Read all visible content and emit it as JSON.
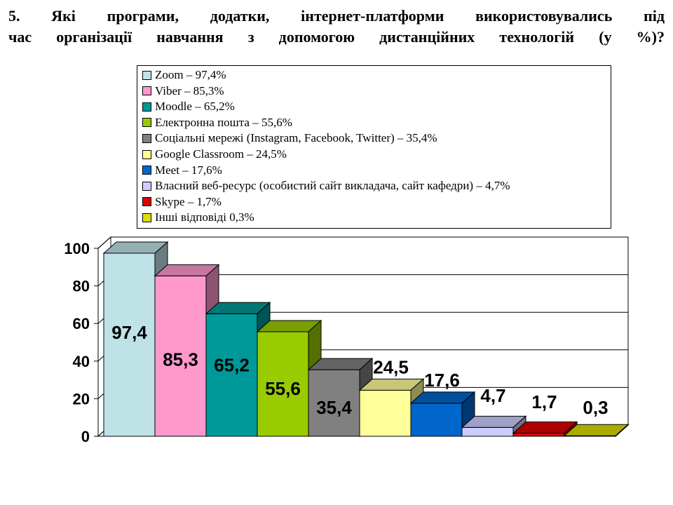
{
  "title_lines": [
    "5. Які програми, додатки, інтернет-платформи використовувались під",
    "час організації навчання з допомогою дистанційних технологій (у %)?"
  ],
  "chart_data": {
    "type": "bar",
    "categories": [
      "Zoom",
      "Viber",
      "Moodle",
      "Електронна пошта",
      "Соціальні мережі (Instagram, Facebook, Twitter)",
      "Google Classroom",
      "Meet",
      "Власний веб-ресурс (особистий сайт викладача, сайт кафедри)",
      "Skype",
      "Інші відповіді"
    ],
    "values": [
      97.4,
      85.3,
      65.2,
      55.6,
      35.4,
      24.5,
      17.6,
      4.7,
      1.7,
      0.3
    ],
    "value_labels": [
      "97,4",
      "85,3",
      "65,2",
      "55,6",
      "35,4",
      "24,5",
      "17,6",
      "4,7",
      "1,7",
      "0,3"
    ],
    "colors": [
      "#bfe2e6",
      "#ff99cc",
      "#009999",
      "#99cc00",
      "#808080",
      "#ffff99",
      "#0066cc",
      "#ccccff",
      "#dd0000",
      "#dddd00"
    ],
    "legend": [
      "Zoom – 97,4%",
      "Viber – 85,3%",
      "Moodle  – 65,2%",
      "Електронна пошта – 55,6%",
      "Соціальні мережі (Instagram, Facebook, Twitter) – 35,4%",
      "Google Classroom – 24,5%",
      "Meet – 17,6%",
      "Власний веб-ресурс (особистий сайт викладача, сайт кафедри) – 4,7%",
      "Skype – 1,7%",
      "Інші відповіді 0,3%"
    ],
    "legend_position": "top",
    "yticks": [
      "0",
      "20",
      "40",
      "60",
      "80",
      "100"
    ],
    "ylim": [
      0,
      100
    ],
    "grid": true,
    "xlabel": "",
    "ylabel": ""
  }
}
